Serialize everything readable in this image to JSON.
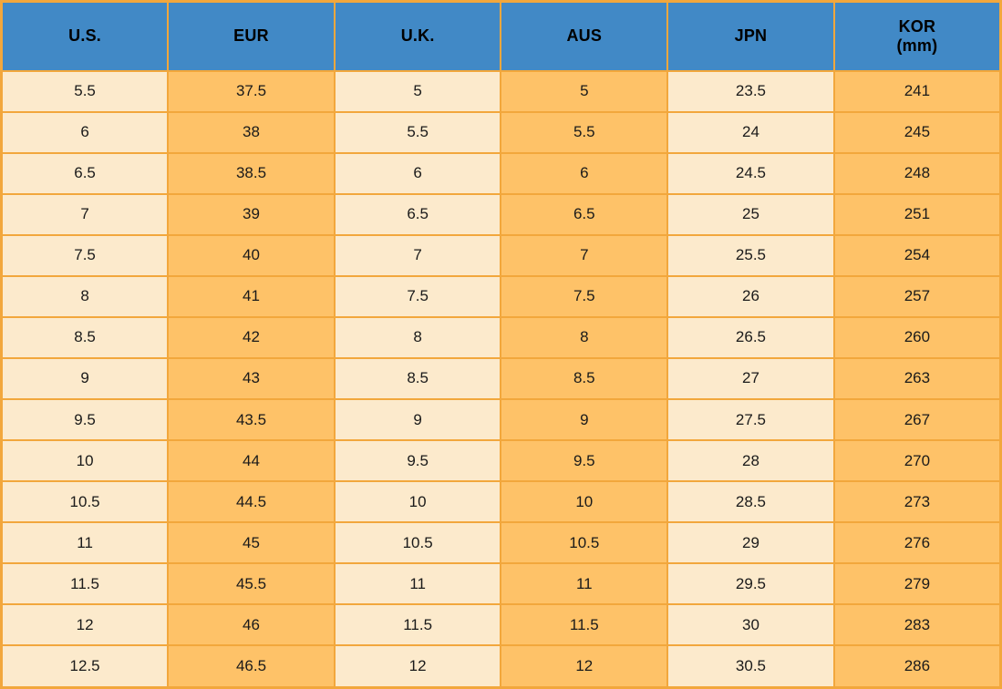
{
  "colors": {
    "border": "#f2a73c",
    "header_bg": "#4189c6",
    "cell_cream": "#fceacc",
    "cell_orange": "#fec268",
    "header_text": "#000000",
    "cell_text": "#1a1a1a"
  },
  "chart_data": {
    "type": "table",
    "columns": [
      {
        "label": "U.S.",
        "sublabel": "",
        "variant": "cream"
      },
      {
        "label": "EUR",
        "sublabel": "",
        "variant": "orange"
      },
      {
        "label": "U.K.",
        "sublabel": "",
        "variant": "cream"
      },
      {
        "label": "AUS",
        "sublabel": "",
        "variant": "orange"
      },
      {
        "label": "JPN",
        "sublabel": "",
        "variant": "cream"
      },
      {
        "label": "KOR",
        "sublabel": "(mm)",
        "variant": "orange"
      }
    ],
    "rows": [
      [
        "5.5",
        "37.5",
        "5",
        "5",
        "23.5",
        "241"
      ],
      [
        "6",
        "38",
        "5.5",
        "5.5",
        "24",
        "245"
      ],
      [
        "6.5",
        "38.5",
        "6",
        "6",
        "24.5",
        "248"
      ],
      [
        "7",
        "39",
        "6.5",
        "6.5",
        "25",
        "251"
      ],
      [
        "7.5",
        "40",
        "7",
        "7",
        "25.5",
        "254"
      ],
      [
        "8",
        "41",
        "7.5",
        "7.5",
        "26",
        "257"
      ],
      [
        "8.5",
        "42",
        "8",
        "8",
        "26.5",
        "260"
      ],
      [
        "9",
        "43",
        "8.5",
        "8.5",
        "27",
        "263"
      ],
      [
        "9.5",
        "43.5",
        "9",
        "9",
        "27.5",
        "267"
      ],
      [
        "10",
        "44",
        "9.5",
        "9.5",
        "28",
        "270"
      ],
      [
        "10.5",
        "44.5",
        "10",
        "10",
        "28.5",
        "273"
      ],
      [
        "11",
        "45",
        "10.5",
        "10.5",
        "29",
        "276"
      ],
      [
        "11.5",
        "45.5",
        "11",
        "11",
        "29.5",
        "279"
      ],
      [
        "12",
        "46",
        "11.5",
        "11.5",
        "30",
        "283"
      ],
      [
        "12.5",
        "46.5",
        "12",
        "12",
        "30.5",
        "286"
      ]
    ]
  }
}
